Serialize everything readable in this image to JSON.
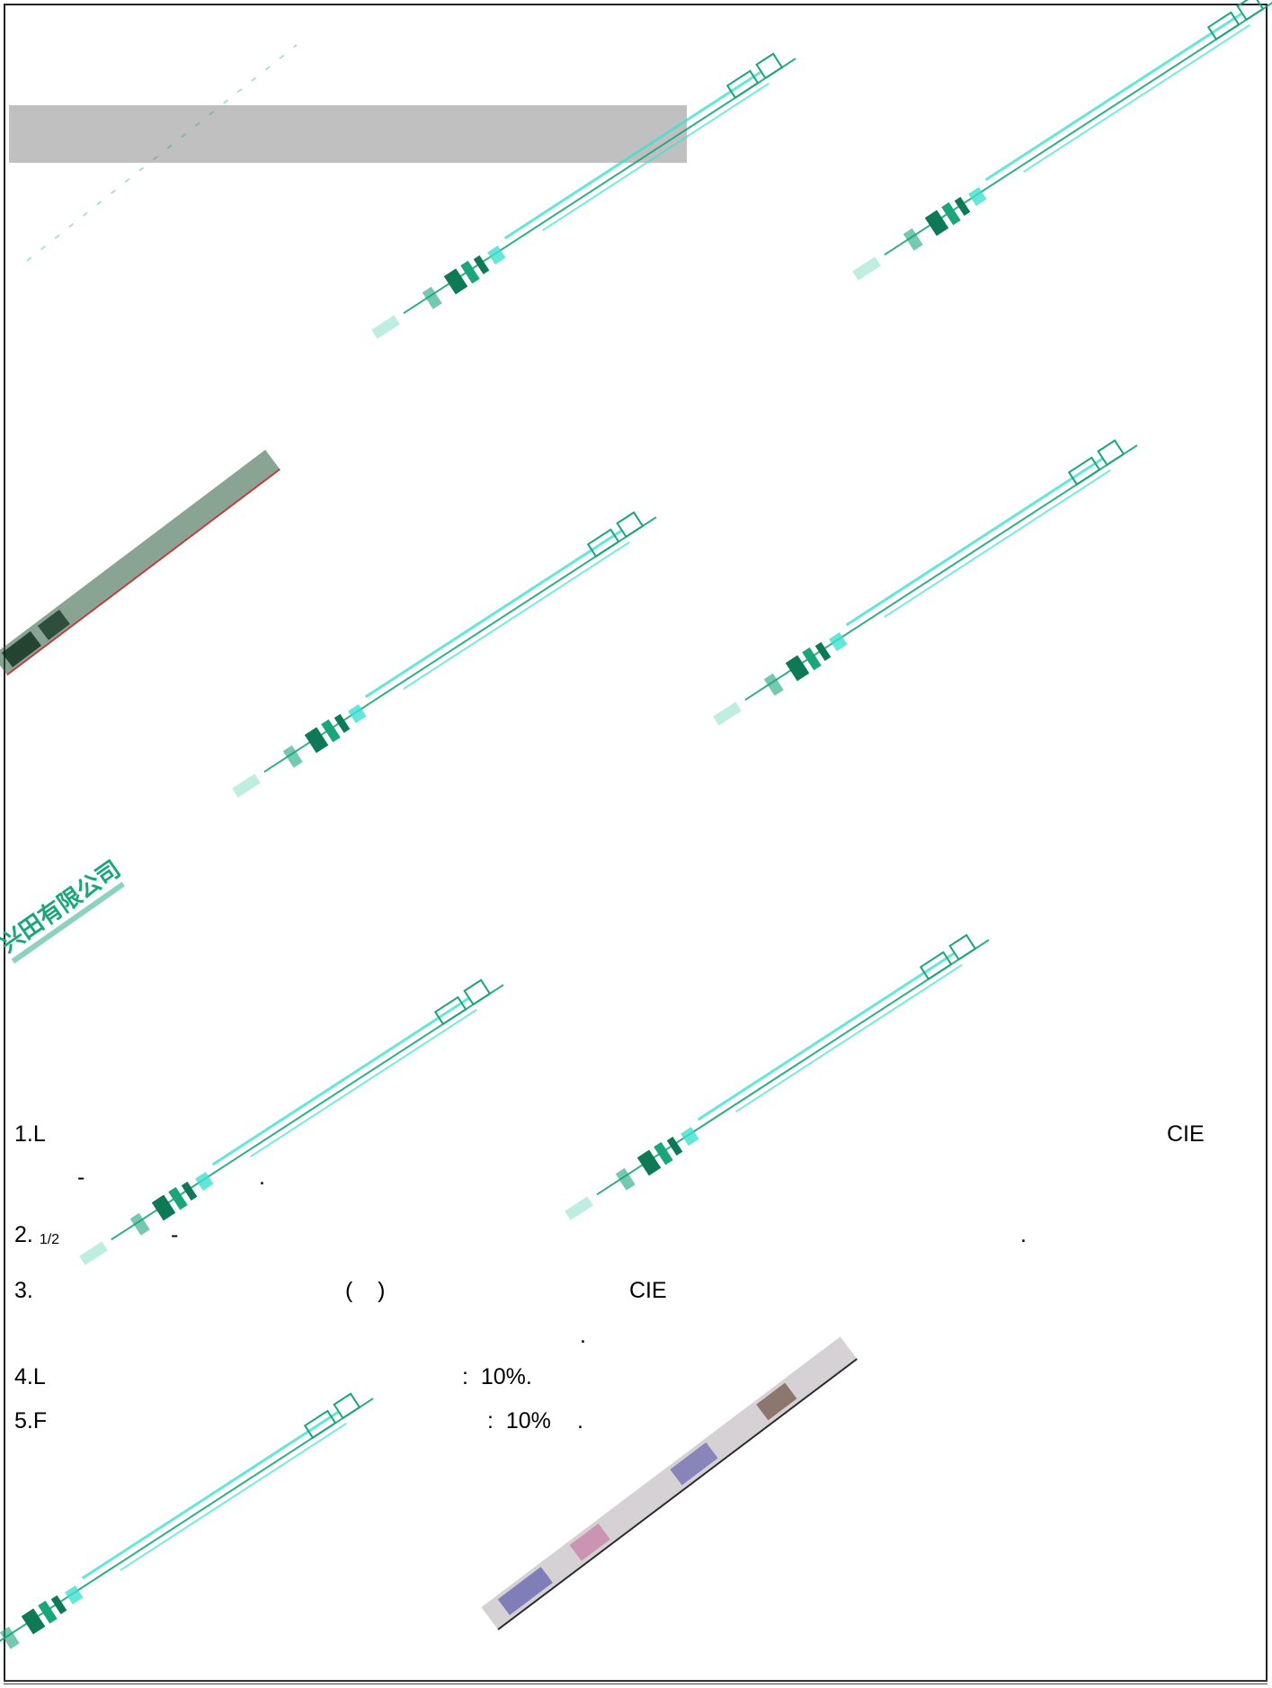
{
  "colors": {
    "header_bar": "#c0c0c0",
    "watermark_green": "#1aa57a",
    "watermark_cyan": "#3fe0d0",
    "stamp_red": "#c0383c",
    "stamp_blue": "#3a3aa0"
  },
  "notes": {
    "n1": {
      "prefix": "1.L",
      "right": "CIE",
      "dash": "-",
      "dot": "."
    },
    "n2": {
      "prefix": "2.",
      "sub": "1/2",
      "dash": "-",
      "dot": "."
    },
    "n3": {
      "prefix": "3.",
      "paren": "(    )",
      "mid": "CIE",
      "dot": "."
    },
    "n4": {
      "prefix": "4.L",
      "value": ":  10%."
    },
    "n5": {
      "prefix": "5.F",
      "value": ":  10%",
      "dot": "."
    }
  },
  "watermark": {
    "text": "兴田有限公司"
  }
}
